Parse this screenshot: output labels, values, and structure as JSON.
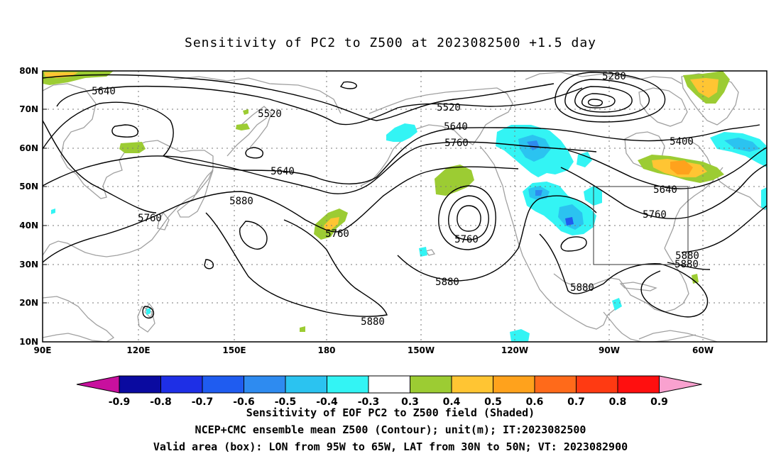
{
  "title": "Sensitivity of PC2 to Z500 at 2023082500 +1.5 day",
  "map": {
    "lon_ticks": [
      "90E",
      "120E",
      "150E",
      "180",
      "150W",
      "120W",
      "90W",
      "60W"
    ],
    "lat_ticks": [
      "80N",
      "70N",
      "60N",
      "50N",
      "40N",
      "30N",
      "20N",
      "10N"
    ],
    "contour_labels": [
      {
        "text": "5640",
        "id": "label-5640-westpac"
      },
      {
        "text": "5520",
        "id": "label-5520-np"
      },
      {
        "text": "5640",
        "id": "label-5640-np"
      },
      {
        "text": "5880",
        "id": "label-5880-japan"
      },
      {
        "text": "5760",
        "id": "label-5760-asia"
      },
      {
        "text": "5760",
        "id": "label-5760-dateline"
      },
      {
        "text": "5520",
        "id": "label-5520-gulfak"
      },
      {
        "text": "5640",
        "id": "label-5640-bc"
      },
      {
        "text": "5760",
        "id": "label-5760-bc"
      },
      {
        "text": "5760",
        "id": "label-5760-low"
      },
      {
        "text": "5880",
        "id": "label-5880-ep"
      },
      {
        "text": "5880",
        "id": "label-5880-mexico"
      },
      {
        "text": "5880",
        "id": "label-5880-pac"
      },
      {
        "text": "5280",
        "id": "label-5280"
      },
      {
        "text": "5400",
        "id": "label-5400"
      },
      {
        "text": "5640",
        "id": "label-5640-east"
      },
      {
        "text": "5760",
        "id": "label-5760-east"
      },
      {
        "text": "5880",
        "id": "label-5880-atl1"
      },
      {
        "text": "5880",
        "id": "label-5880-atl2"
      }
    ]
  },
  "colorbar": {
    "labels": [
      "-0.9",
      "-0.8",
      "-0.7",
      "-0.6",
      "-0.5",
      "-0.4",
      "-0.3",
      "0.3",
      "0.4",
      "0.5",
      "0.6",
      "0.7",
      "0.8",
      "0.9"
    ],
    "colors": [
      "#0a0aa0",
      "#1e2fe6",
      "#1f5cf0",
      "#2e8bf0",
      "#2bc3f0",
      "#33f4f4",
      "#ffffff",
      "#9ccc33",
      "#ffc533",
      "#ffa21c",
      "#ff6a1a",
      "#ff3a12",
      "#ff0f0f"
    ],
    "low_end_color": "#c8109e",
    "high_end_color": "#f9a1cf"
  },
  "captions": [
    "Sensitivity of EOF PC2 to Z500 field (Shaded)",
    "NCEP+CMC ensemble mean Z500 (Contour); unit(m); IT:2023082500",
    "Valid area (box): LON from 95W to 65W, LAT from 30N to 50N; VT: 2023082900"
  ]
}
